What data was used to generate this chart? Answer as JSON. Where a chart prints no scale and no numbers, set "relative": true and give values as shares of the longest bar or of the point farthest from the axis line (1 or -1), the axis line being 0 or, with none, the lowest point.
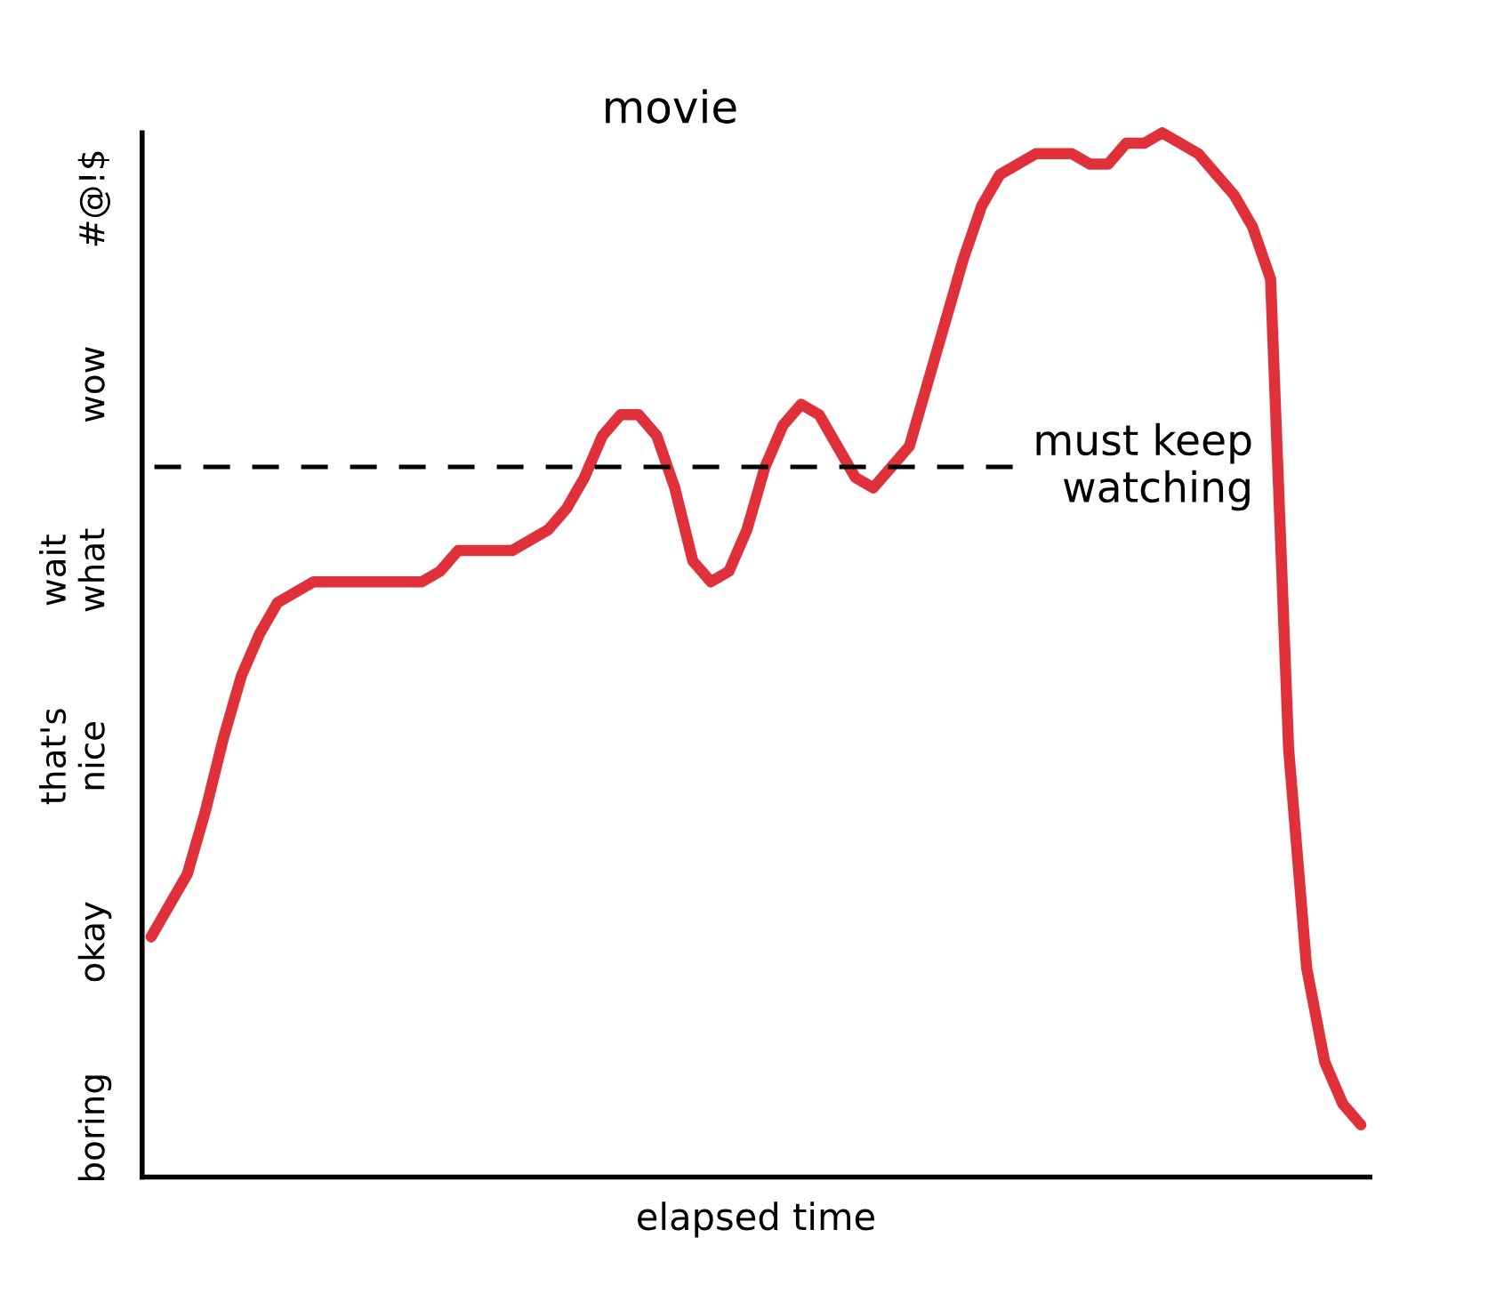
{
  "chart_data": {
    "type": "line",
    "title": "movie",
    "xlabel": "elapsed time",
    "relative": true,
    "categories": [
      null,
      null,
      null,
      null,
      null,
      null,
      null,
      null,
      null,
      null,
      null,
      null,
      null,
      null,
      null,
      null,
      null,
      null,
      null,
      null,
      null,
      null,
      null,
      null,
      null,
      null,
      null,
      null,
      null,
      null,
      null,
      null,
      null,
      null,
      null,
      null,
      null,
      null,
      null,
      null,
      null,
      null,
      null,
      null,
      null,
      null,
      null,
      null,
      null,
      null,
      null,
      null,
      null,
      null,
      null,
      null,
      null,
      null,
      null,
      null,
      null,
      null,
      null,
      null,
      null,
      null,
      null,
      null
    ],
    "series": [
      {
        "color": "#e0313a",
        "values": [
          0.23,
          0.26,
          0.29,
          0.35,
          0.42,
          0.48,
          0.52,
          0.55,
          0.56,
          0.57,
          0.57,
          0.57,
          0.57,
          0.57,
          0.57,
          0.57,
          0.58,
          0.6,
          0.6,
          0.6,
          0.6,
          0.61,
          0.62,
          0.64,
          0.67,
          0.71,
          0.73,
          0.73,
          0.71,
          0.66,
          0.59,
          0.57,
          0.58,
          0.62,
          0.68,
          0.72,
          0.74,
          0.73,
          0.7,
          0.67,
          0.66,
          0.68,
          0.7,
          0.76,
          0.82,
          0.88,
          0.93,
          0.96,
          0.97,
          0.98,
          0.98,
          0.98,
          0.97,
          0.97,
          0.99,
          0.99,
          1.0,
          0.99,
          0.98,
          0.96,
          0.94,
          0.91,
          0.86,
          0.41,
          0.2,
          0.11,
          0.07,
          0.05
        ]
      }
    ],
    "annotations": [
      "boring",
      "okay",
      "that's\nnice",
      "wait\nwhat",
      "wow",
      "#@!$"
    ],
    "ref_lines": [
      {
        "axis": "y",
        "value": 0.68,
        "label": "must keep\nwatching",
        "color": "#000000",
        "line_style": "dashed"
      }
    ],
    "tick_labels": false,
    "grid": false,
    "legend": false,
    "marker": "none",
    "line_style": "solid"
  }
}
